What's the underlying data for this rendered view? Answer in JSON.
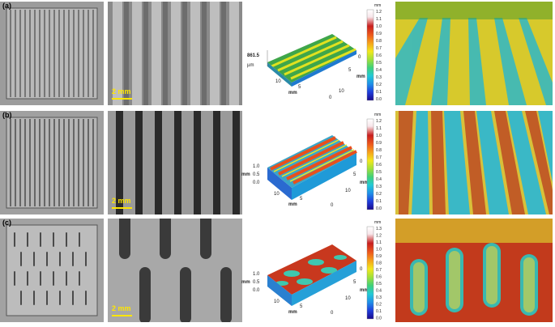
{
  "panels": [
    {
      "label": "(a)",
      "scale_bar": "2 mm",
      "plot": {
        "z_value": "861.5",
        "z_unit": "µm",
        "x_label": "mm",
        "y_label": "mm",
        "x_ticks": [
          "10",
          "5",
          "0"
        ],
        "y_ticks": [
          "0",
          "5",
          "10"
        ]
      },
      "colorbar": {
        "unit": "mm",
        "ticks": [
          "1.2",
          "1.1",
          "1.0",
          "0.9",
          "0.8",
          "0.7",
          "0.6",
          "0.5",
          "0.4",
          "0.3",
          "0.2",
          "0.1",
          "0.0"
        ]
      }
    },
    {
      "label": "(b)",
      "scale_bar": "2 mm",
      "plot": {
        "z_ticks": [
          "1.0",
          "0.5",
          "0.0"
        ],
        "z_unit": "mm",
        "x_label": "mm",
        "y_label": "mm",
        "x_ticks": [
          "10",
          "5",
          "0"
        ],
        "y_ticks": [
          "0",
          "5",
          "10"
        ]
      },
      "colorbar": {
        "unit": "mm",
        "ticks": [
          "1.2",
          "1.1",
          "1.0",
          "0.9",
          "0.8",
          "0.7",
          "0.6",
          "0.5",
          "0.4",
          "0.3",
          "0.2",
          "0.1",
          "0.0"
        ]
      }
    },
    {
      "label": "(c)",
      "scale_bar": "2 mm",
      "plot": {
        "z_ticks": [
          "1.0",
          "0.5",
          "0.0"
        ],
        "z_unit": "mm",
        "x_label": "mm",
        "y_label": "mm",
        "x_ticks": [
          "10",
          "5",
          "0"
        ],
        "y_ticks": [
          "0",
          "5",
          "10"
        ]
      },
      "colorbar": {
        "unit": "mm",
        "ticks": [
          "1.3",
          "1.2",
          "1.1",
          "1.0",
          "0.9",
          "0.8",
          "0.7",
          "0.6",
          "0.5",
          "0.4",
          "0.3",
          "0.2",
          "0.1",
          "0.0"
        ]
      }
    }
  ],
  "colors": {
    "scale_bar": "#ffe600",
    "colormap": [
      "#1a0a8c",
      "#1f3ddb",
      "#1f8fe8",
      "#22c9d6",
      "#3fd17a",
      "#9fe03a",
      "#f2e81c",
      "#f6a41a",
      "#ee5a1c",
      "#c81e1e",
      "#f7e6ea",
      "#ffffff"
    ]
  }
}
